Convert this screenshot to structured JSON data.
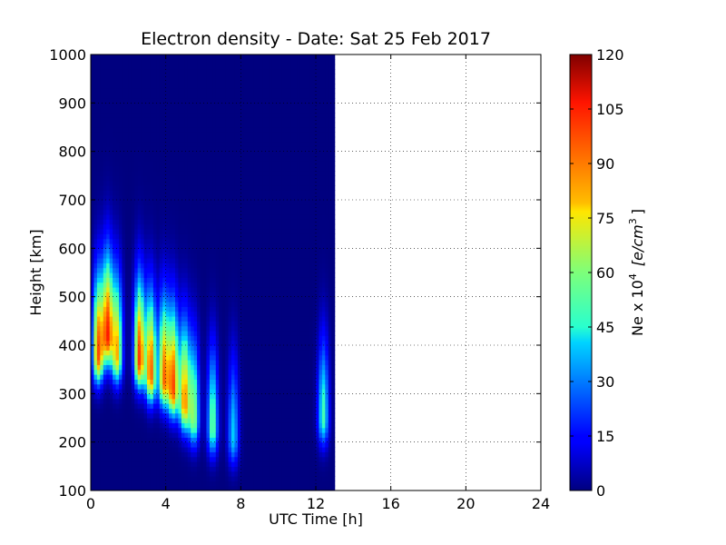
{
  "chart_data": {
    "type": "heatmap",
    "title": "Electron density - Date: Sat 25 Feb 2017",
    "xlabel": "UTC Time [h]",
    "ylabel": "Height [km]",
    "xlim": [
      0,
      24
    ],
    "ylim": [
      100,
      1000
    ],
    "xticks": [
      0,
      4,
      8,
      12,
      16,
      20,
      24
    ],
    "yticks": [
      100,
      200,
      300,
      400,
      500,
      600,
      700,
      800,
      900,
      1000
    ],
    "grid": true,
    "data_time_range": [
      0,
      13
    ],
    "colormap": "jet",
    "colorbar": {
      "label_prefix": "Ne x 10",
      "label_exponent": "4",
      "label_units": "[e/cm",
      "label_units_exponent": "3",
      "label_units_close": "]",
      "range": [
        0,
        120
      ],
      "ticks": [
        0,
        15,
        30,
        45,
        60,
        75,
        90,
        105,
        120
      ]
    },
    "features": [
      {
        "t": 0.4,
        "h": 380,
        "ne": 95
      },
      {
        "t": 0.9,
        "h": 420,
        "ne": 100
      },
      {
        "t": 1.4,
        "h": 380,
        "ne": 80
      },
      {
        "t": 2.6,
        "h": 370,
        "ne": 100
      },
      {
        "t": 3.2,
        "h": 340,
        "ne": 95
      },
      {
        "t": 3.9,
        "h": 330,
        "ne": 90
      },
      {
        "t": 4.4,
        "h": 310,
        "ne": 95
      },
      {
        "t": 5.0,
        "h": 280,
        "ne": 85
      },
      {
        "t": 5.5,
        "h": 250,
        "ne": 60
      },
      {
        "t": 6.5,
        "h": 230,
        "ne": 55
      },
      {
        "t": 7.6,
        "h": 210,
        "ne": 40
      },
      {
        "t": 12.4,
        "h": 250,
        "ne": 50
      }
    ]
  }
}
